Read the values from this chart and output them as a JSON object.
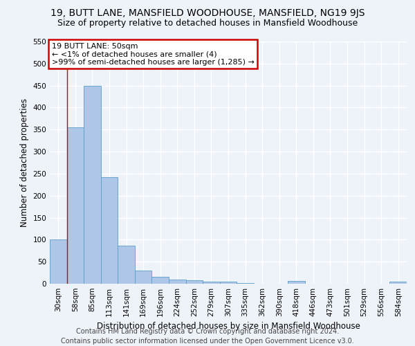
{
  "title": "19, BUTT LANE, MANSFIELD WOODHOUSE, MANSFIELD, NG19 9JS",
  "subtitle": "Size of property relative to detached houses in Mansfield Woodhouse",
  "xlabel": "Distribution of detached houses by size in Mansfield Woodhouse",
  "ylabel": "Number of detached properties",
  "footer_line1": "Contains HM Land Registry data © Crown copyright and database right 2024.",
  "footer_line2": "Contains public sector information licensed under the Open Government Licence v3.0.",
  "categories": [
    "30sqm",
    "58sqm",
    "85sqm",
    "113sqm",
    "141sqm",
    "169sqm",
    "196sqm",
    "224sqm",
    "252sqm",
    "279sqm",
    "307sqm",
    "335sqm",
    "362sqm",
    "390sqm",
    "418sqm",
    "446sqm",
    "473sqm",
    "501sqm",
    "529sqm",
    "556sqm",
    "584sqm"
  ],
  "values": [
    100,
    355,
    450,
    242,
    87,
    30,
    15,
    10,
    8,
    4,
    4,
    2,
    0,
    0,
    6,
    0,
    0,
    0,
    0,
    0,
    5
  ],
  "bar_color": "#aec6e8",
  "bar_edge_color": "#5a9ec9",
  "annotation_line1": "19 BUTT LANE: 50sqm",
  "annotation_line2": "← <1% of detached houses are smaller (4)",
  "annotation_line3": ">99% of semi-detached houses are larger (1,285) →",
  "annotation_box_color": "#ffffff",
  "annotation_box_edge_color": "#cc0000",
  "vline_color": "#cc0000",
  "ylim": [
    0,
    550
  ],
  "yticks": [
    0,
    50,
    100,
    150,
    200,
    250,
    300,
    350,
    400,
    450,
    500,
    550
  ],
  "bg_color": "#eef2f9",
  "grid_color": "#ffffff",
  "title_fontsize": 10,
  "subtitle_fontsize": 9,
  "axis_label_fontsize": 8.5,
  "tick_fontsize": 7.5,
  "annotation_fontsize": 8,
  "footer_fontsize": 7
}
